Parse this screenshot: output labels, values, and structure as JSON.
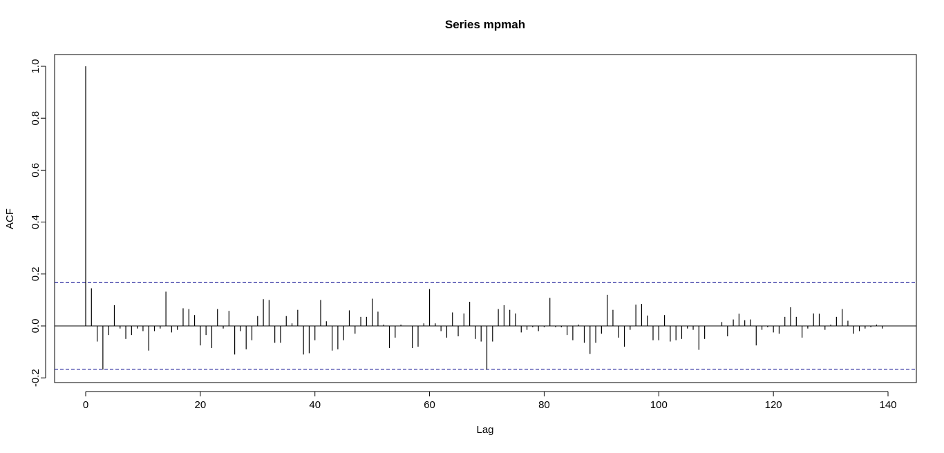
{
  "chart_data": {
    "type": "bar",
    "subtype": "acf-spikes",
    "title": "Series  mpmah",
    "xlabel": "Lag",
    "ylabel": "ACF",
    "xlim": [
      -5,
      146
    ],
    "ylim": [
      -0.2,
      1.0
    ],
    "xticks": [
      0,
      20,
      40,
      60,
      80,
      100,
      120,
      140
    ],
    "xtick_labels": [
      "0",
      "20",
      "40",
      "60",
      "80",
      "100",
      "120",
      "140"
    ],
    "yticks": [
      -0.2,
      0.0,
      0.2,
      0.4,
      0.6,
      0.8,
      1.0
    ],
    "ytick_labels": [
      "-0.2",
      "0.0",
      "0.2",
      "0.4",
      "0.6",
      "0.8",
      "1.0"
    ],
    "confidence_bound": 0.167,
    "confidence_color": "#00008b",
    "grid": false,
    "legend": "none",
    "lags": [
      0,
      1,
      2,
      3,
      4,
      5,
      6,
      7,
      8,
      9,
      10,
      11,
      12,
      13,
      14,
      15,
      16,
      17,
      18,
      19,
      20,
      21,
      22,
      23,
      24,
      25,
      26,
      27,
      28,
      29,
      30,
      31,
      32,
      33,
      34,
      35,
      36,
      37,
      38,
      39,
      40,
      41,
      42,
      43,
      44,
      45,
      46,
      47,
      48,
      49,
      50,
      51,
      52,
      53,
      54,
      55,
      56,
      57,
      58,
      59,
      60,
      61,
      62,
      63,
      64,
      65,
      66,
      67,
      68,
      69,
      70,
      71,
      72,
      73,
      74,
      75,
      76,
      77,
      78,
      79,
      80,
      81,
      82,
      83,
      84,
      85,
      86,
      87,
      88,
      89,
      90,
      91,
      92,
      93,
      94,
      95,
      96,
      97,
      98,
      99,
      100,
      101,
      102,
      103,
      104,
      105,
      106,
      107,
      108,
      109,
      110,
      111,
      112,
      113,
      114,
      115,
      116,
      117,
      118,
      119,
      120,
      121,
      122,
      123,
      124,
      125,
      126,
      127,
      128,
      129,
      130,
      131,
      132,
      133,
      134,
      135,
      136,
      137,
      138,
      139
    ],
    "acf": [
      1.0,
      0.145,
      -0.06,
      -0.168,
      -0.035,
      0.08,
      -0.01,
      -0.05,
      -0.035,
      -0.01,
      -0.02,
      -0.095,
      -0.02,
      -0.01,
      0.132,
      -0.025,
      -0.015,
      0.068,
      0.065,
      0.042,
      -0.075,
      -0.035,
      -0.085,
      0.065,
      -0.01,
      0.058,
      -0.11,
      -0.02,
      -0.09,
      -0.055,
      0.038,
      0.103,
      0.1,
      -0.065,
      -0.065,
      0.038,
      0.01,
      0.062,
      -0.11,
      -0.105,
      -0.055,
      0.1,
      0.018,
      -0.095,
      -0.09,
      -0.055,
      0.06,
      -0.03,
      0.035,
      0.035,
      0.105,
      0.055,
      0.005,
      -0.085,
      -0.045,
      0.005,
      0.0,
      -0.085,
      -0.08,
      0.01,
      0.142,
      0.01,
      -0.02,
      -0.045,
      0.052,
      -0.04,
      0.048,
      0.093,
      -0.05,
      -0.06,
      -0.168,
      -0.06,
      0.065,
      0.08,
      0.062,
      0.048,
      -0.025,
      -0.015,
      -0.005,
      -0.02,
      -0.005,
      0.108,
      -0.005,
      -0.005,
      -0.035,
      -0.055,
      0.005,
      -0.065,
      -0.108,
      -0.065,
      -0.03,
      0.12,
      0.062,
      -0.045,
      -0.08,
      -0.015,
      0.082,
      0.085,
      0.04,
      -0.055,
      -0.055,
      0.042,
      -0.06,
      -0.055,
      -0.05,
      -0.01,
      -0.015,
      -0.092,
      -0.05,
      0.0,
      0.0,
      0.015,
      -0.04,
      0.025,
      0.047,
      0.022,
      0.025,
      -0.075,
      -0.015,
      -0.005,
      -0.025,
      -0.03,
      0.035,
      0.072,
      0.035,
      -0.045,
      -0.01,
      0.048,
      0.047,
      -0.015,
      0.005,
      0.035,
      0.065,
      0.02,
      -0.03,
      -0.02,
      -0.01,
      -0.005,
      0.005,
      -0.01
    ]
  }
}
